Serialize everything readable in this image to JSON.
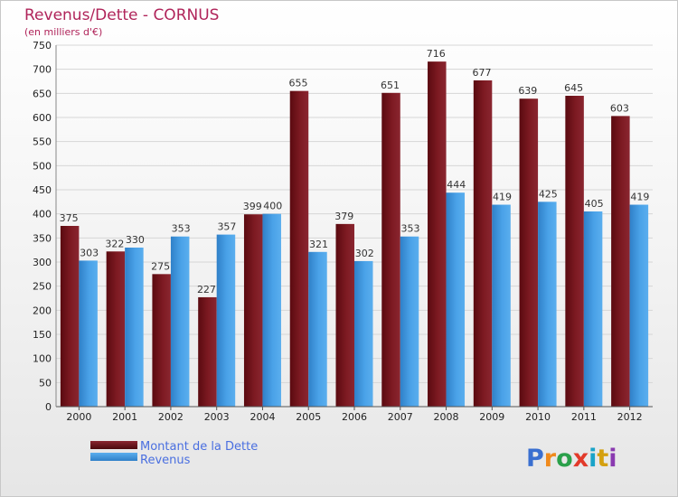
{
  "title": "Revenus/Dette - CORNUS",
  "subtitle": "(en milliers d'€)",
  "logo_text": "Proxiti",
  "colors": {
    "dette": "#6b1016",
    "revenus": "#3e94dc",
    "title": "#b0245a",
    "legend_text": "#4a6fe0"
  },
  "chart_data": {
    "type": "bar",
    "title": "Revenus/Dette - CORNUS",
    "ylabel": "(en milliers d'€)",
    "xlabel": "",
    "categories": [
      "2000",
      "2001",
      "2002",
      "2003",
      "2004",
      "2005",
      "2006",
      "2007",
      "2008",
      "2009",
      "2010",
      "2011",
      "2012"
    ],
    "series": [
      {
        "name": "Montant de la Dette",
        "color": "#6b1016",
        "values": [
          375,
          322,
          275,
          227,
          399,
          655,
          379,
          651,
          716,
          677,
          639,
          645,
          603
        ]
      },
      {
        "name": "Revenus",
        "color": "#3e94dc",
        "values": [
          303,
          330,
          353,
          357,
          400,
          321,
          302,
          353,
          444,
          419,
          425,
          405,
          419
        ]
      }
    ],
    "ylim": [
      0,
      750
    ],
    "yticks": [
      0,
      50,
      100,
      150,
      200,
      250,
      300,
      350,
      400,
      450,
      500,
      550,
      600,
      650,
      700,
      750
    ],
    "grid": true,
    "legend": "bottom-left"
  }
}
